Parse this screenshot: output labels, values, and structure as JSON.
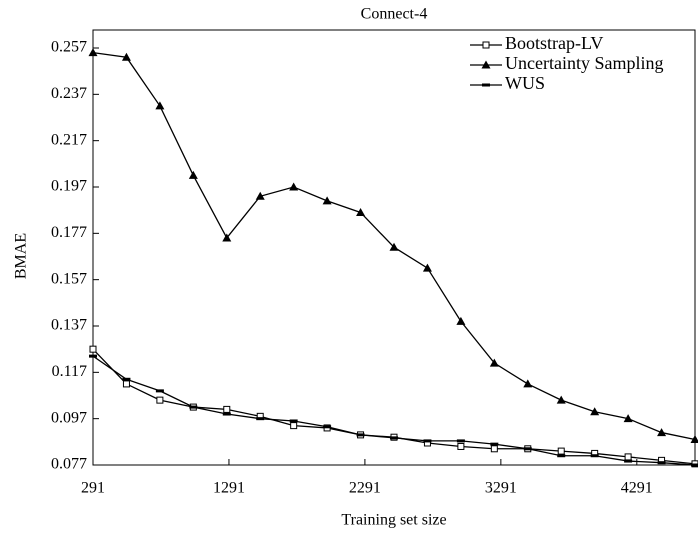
{
  "chart_data": {
    "type": "line",
    "title": "Connect-4",
    "x_label": "Training set size",
    "y_label": "BMAE",
    "x": [
      291,
      537,
      783,
      1029,
      1275,
      1521,
      1767,
      2013,
      2259,
      2505,
      2751,
      2997,
      3243,
      3489,
      3735,
      3981,
      4227,
      4473,
      4719
    ],
    "series": [
      {
        "name": "Bootstrap-LV",
        "color": "#000000",
        "marker": "square",
        "values": [
          0.127,
          0.112,
          0.105,
          0.102,
          0.101,
          0.098,
          0.094,
          0.093,
          0.09,
          0.089,
          0.0865,
          0.085,
          0.084,
          0.084,
          0.083,
          0.082,
          0.0805,
          0.079,
          0.0775
        ]
      },
      {
        "name": "Uncertainty Sampling",
        "color": "#000000",
        "marker": "triangle",
        "values": [
          0.255,
          0.253,
          0.232,
          0.202,
          0.175,
          0.193,
          0.197,
          0.191,
          0.186,
          0.171,
          0.162,
          0.139,
          0.121,
          0.112,
          0.105,
          0.1,
          0.097,
          0.091,
          0.088
        ]
      },
      {
        "name": "WUS",
        "color": "#000000",
        "marker": "dash",
        "values": [
          0.124,
          0.114,
          0.109,
          0.102,
          0.099,
          0.097,
          0.096,
          0.0935,
          0.09,
          0.0887,
          0.0874,
          0.0874,
          0.086,
          0.084,
          0.081,
          0.081,
          0.0787,
          0.078,
          0.077
        ]
      }
    ],
    "xlim": [
      291,
      4719
    ],
    "xticks": [
      291,
      1291,
      2291,
      3291,
      4291
    ],
    "ylim": [
      0.077,
      0.257
    ],
    "yticks": [
      0.077,
      0.097,
      0.117,
      0.137,
      0.157,
      0.177,
      0.197,
      0.217,
      0.237,
      0.257
    ],
    "grid": false,
    "legend": "upper right"
  }
}
